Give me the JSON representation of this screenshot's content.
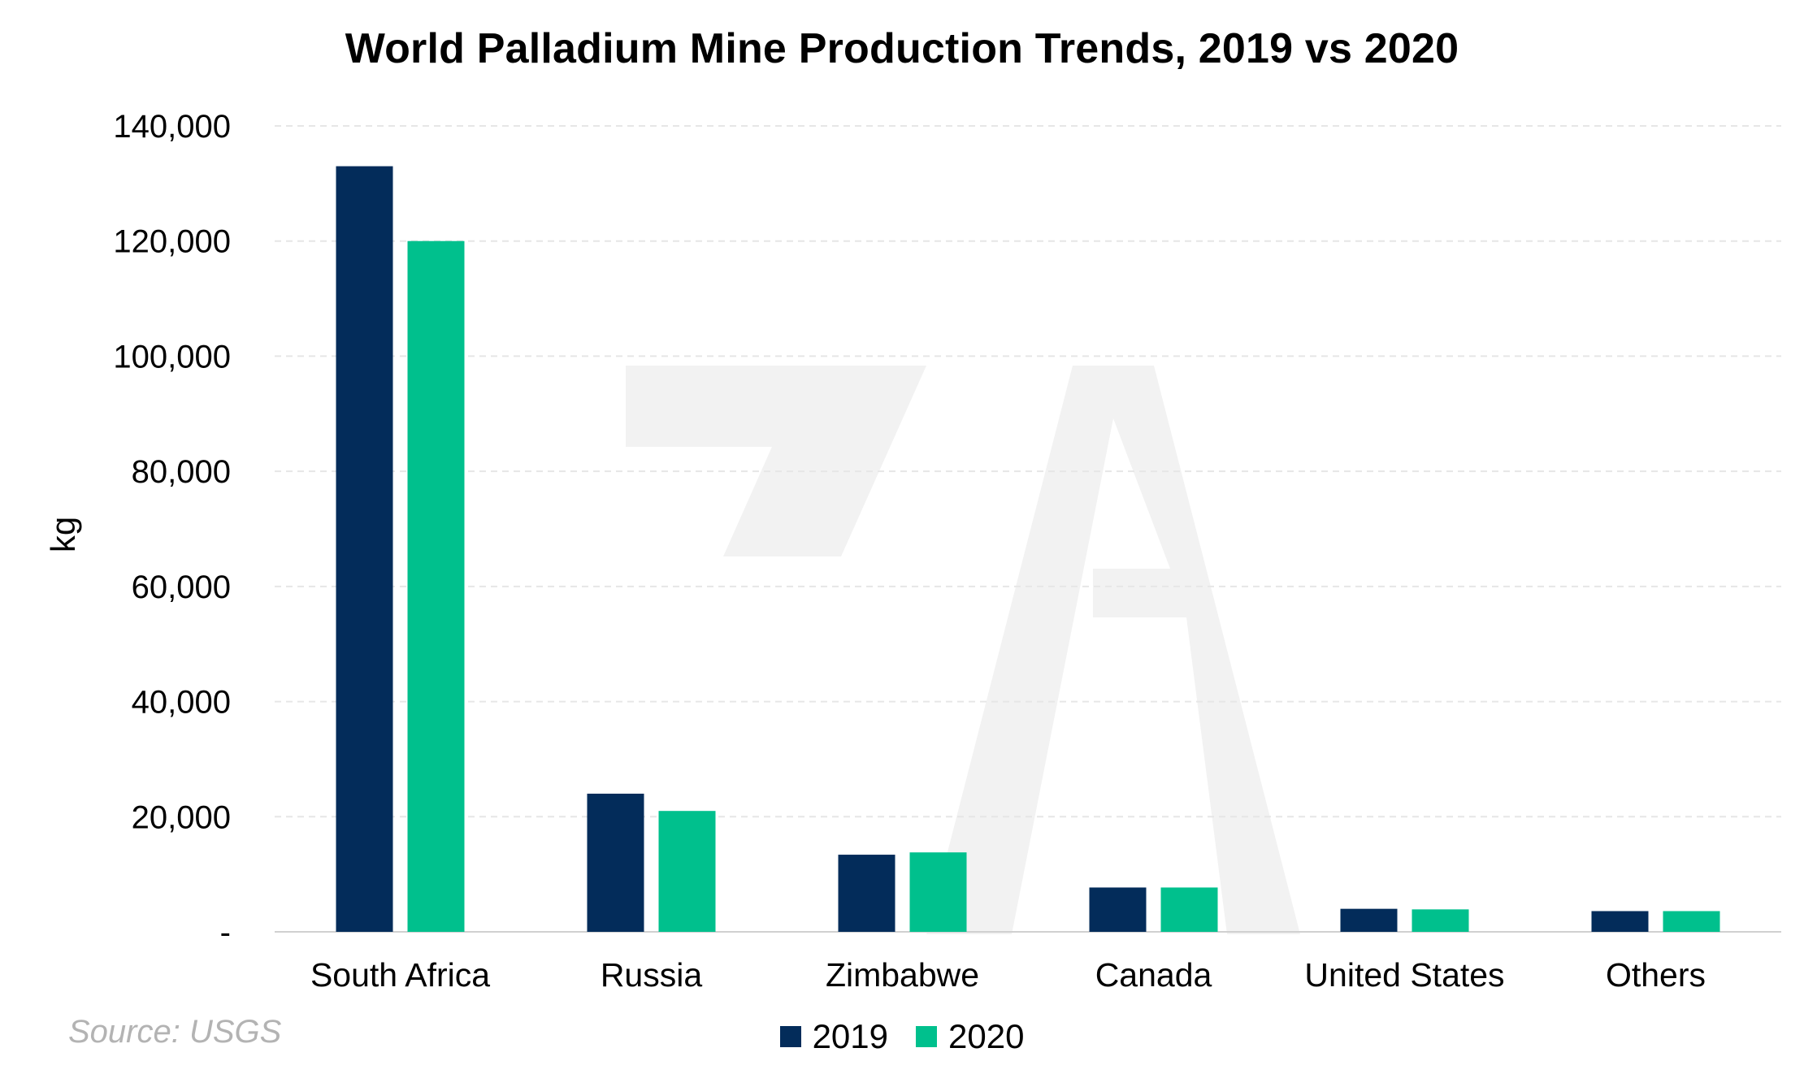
{
  "chart_data": {
    "type": "bar",
    "title": "World Palladium Mine Production Trends, 2019 vs 2020",
    "ylabel": "kg",
    "xlabel": "",
    "categories": [
      "South Africa",
      "Russia",
      "Zimbabwe",
      "Canada",
      "United States",
      "Others"
    ],
    "series": [
      {
        "name": "2019",
        "color": "#032c5a",
        "values": [
          133000,
          24000,
          13400,
          7700,
          4000,
          3600
        ]
      },
      {
        "name": "2020",
        "color": "#00c08d",
        "values": [
          120000,
          21000,
          13800,
          7700,
          3900,
          3600
        ]
      }
    ],
    "ylim": [
      0,
      140000
    ],
    "yticks": [
      {
        "value": 0,
        "label": "-"
      },
      {
        "value": 20000,
        "label": "20,000"
      },
      {
        "value": 40000,
        "label": "40,000"
      },
      {
        "value": 60000,
        "label": "60,000"
      },
      {
        "value": 80000,
        "label": "80,000"
      },
      {
        "value": 100000,
        "label": "100,000"
      },
      {
        "value": 120000,
        "label": "120,000"
      },
      {
        "value": 140000,
        "label": "140,000"
      }
    ],
    "grid": true,
    "legend_position": "bottom-center"
  },
  "source": "Source: USGS"
}
